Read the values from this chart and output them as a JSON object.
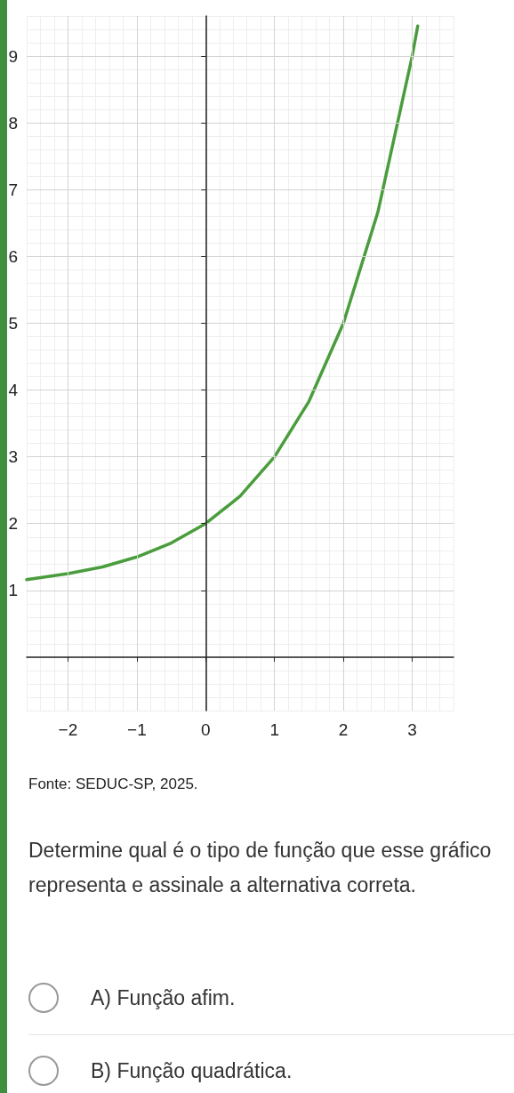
{
  "chart_data": {
    "type": "line",
    "annotations": [
      "Fonte: SEDUC-SP, 2025.",
      "Determine qual é o tipo de função que esse gráfico representa e assinale a alternativa correta.",
      "A) Função afim.",
      "B) Função quadrática."
    ],
    "x": [
      -2.6,
      -2,
      -1.5,
      -1,
      -0.5,
      0,
      0.5,
      1,
      1.5,
      2,
      2.5,
      3,
      3.08
    ],
    "values": [
      1.16,
      1.25,
      1.35,
      1.5,
      1.71,
      2,
      2.41,
      3,
      3.83,
      5,
      6.66,
      9,
      9.45
    ],
    "color": "#4a9d3c",
    "xlim": [
      -2.6,
      3.6
    ],
    "ylim": [
      -0.8,
      9.6
    ],
    "xticks": [
      -2,
      -1,
      0,
      1,
      2,
      3
    ],
    "yticks": [
      1,
      2,
      3,
      4,
      5,
      6,
      7,
      8,
      9
    ],
    "grid": true,
    "marker": "none",
    "line_style": "solid"
  }
}
